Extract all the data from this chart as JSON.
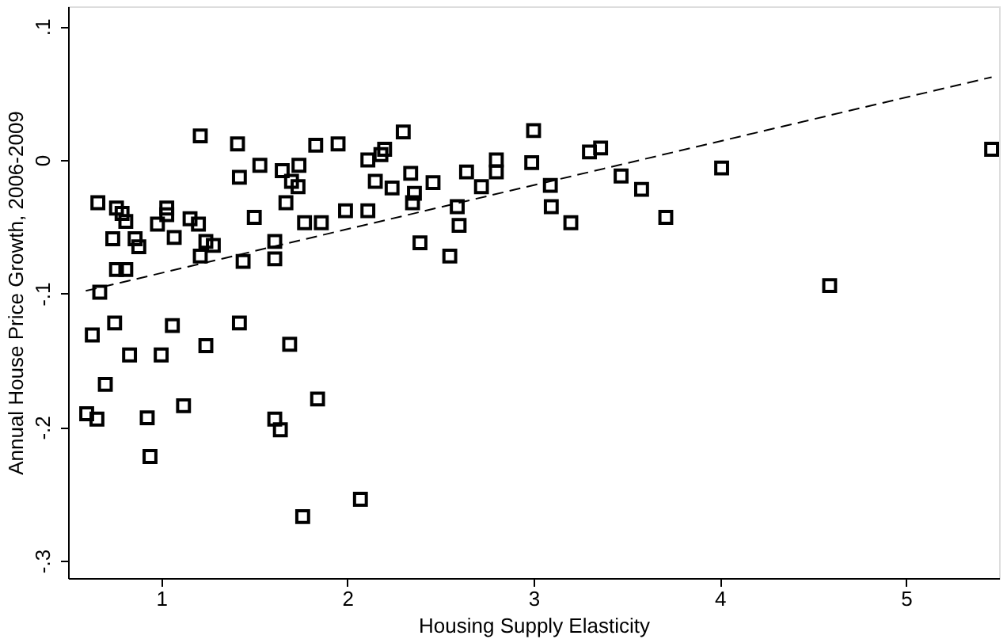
{
  "chart_data": {
    "type": "scatter",
    "xlabel": "Housing Supply Elasticity",
    "ylabel": "Annual House Price Growth, 2006-2009",
    "xlim": [
      0.5,
      5.5
    ],
    "ylim": [
      -0.313,
      0.115
    ],
    "xticks": [
      1,
      2,
      3,
      4,
      5
    ],
    "yticks": [
      {
        "value": -0.3,
        "label": "-.3"
      },
      {
        "value": -0.2,
        "label": "-.2"
      },
      {
        "value": -0.1,
        "label": "-.1"
      },
      {
        "value": 0,
        "label": "0"
      },
      {
        "value": 0.1,
        "label": ".1"
      }
    ],
    "grid": false,
    "legend": false,
    "series": [
      {
        "color": "#000000",
        "marker": "square",
        "x": [
          0.6,
          0.655,
          0.63,
          0.66,
          0.67,
          0.7,
          0.75,
          0.74,
          0.76,
          0.76,
          0.81,
          0.79,
          0.81,
          0.86,
          0.88,
          0.83,
          0.925,
          0.94,
          0.98,
          1.0,
          1.03,
          1.03,
          1.07,
          1.06,
          1.12,
          1.155,
          1.2,
          1.21,
          1.21,
          1.24,
          1.28,
          1.24,
          1.41,
          1.42,
          1.42,
          1.44,
          1.5,
          1.53,
          1.61,
          1.61,
          1.61,
          1.64,
          1.65,
          1.67,
          1.7,
          1.735,
          1.74,
          1.69,
          1.76,
          1.77,
          1.83,
          1.84,
          1.86,
          1.95,
          1.99,
          2.11,
          2.11,
          2.15,
          2.18,
          2.2,
          2.24,
          2.3,
          2.34,
          2.36,
          2.35,
          2.39,
          2.46,
          2.59,
          2.6,
          2.55,
          2.64,
          2.72,
          2.8,
          2.8,
          2.07,
          2.99,
          3.0,
          3.09,
          3.095,
          3.2,
          3.3,
          3.36,
          3.47,
          3.58,
          3.71,
          4.01,
          4.59,
          5.46
        ],
        "values": [
          -0.19,
          -0.194,
          -0.131,
          -0.032,
          -0.099,
          -0.168,
          -0.122,
          -0.059,
          -0.036,
          -0.082,
          -0.082,
          -0.04,
          -0.046,
          -0.059,
          -0.065,
          -0.146,
          -0.193,
          -0.222,
          -0.048,
          -0.146,
          -0.036,
          -0.041,
          -0.058,
          -0.124,
          -0.184,
          -0.044,
          -0.048,
          0.018,
          -0.072,
          -0.061,
          -0.064,
          -0.139,
          0.012,
          -0.013,
          -0.122,
          -0.076,
          -0.043,
          -0.004,
          -0.061,
          -0.074,
          -0.194,
          -0.202,
          -0.008,
          -0.032,
          -0.016,
          -0.02,
          -0.004,
          -0.138,
          -0.267,
          -0.047,
          0.011,
          -0.179,
          -0.047,
          0.012,
          -0.038,
          -0.038,
          0.0,
          -0.016,
          0.004,
          0.008,
          -0.021,
          0.021,
          -0.01,
          -0.025,
          -0.032,
          -0.062,
          -0.017,
          -0.035,
          -0.049,
          -0.072,
          -0.009,
          -0.02,
          0.0,
          -0.009,
          -0.254,
          -0.002,
          0.022,
          -0.019,
          -0.035,
          -0.047,
          0.006,
          0.009,
          -0.012,
          -0.022,
          -0.043,
          -0.006,
          -0.094,
          0.008
        ]
      },
      {
        "type": "line",
        "color": "#000000",
        "line_style": "dashed",
        "x": [
          0.595,
          5.46
        ],
        "values": [
          -0.098,
          0.062
        ]
      }
    ]
  }
}
